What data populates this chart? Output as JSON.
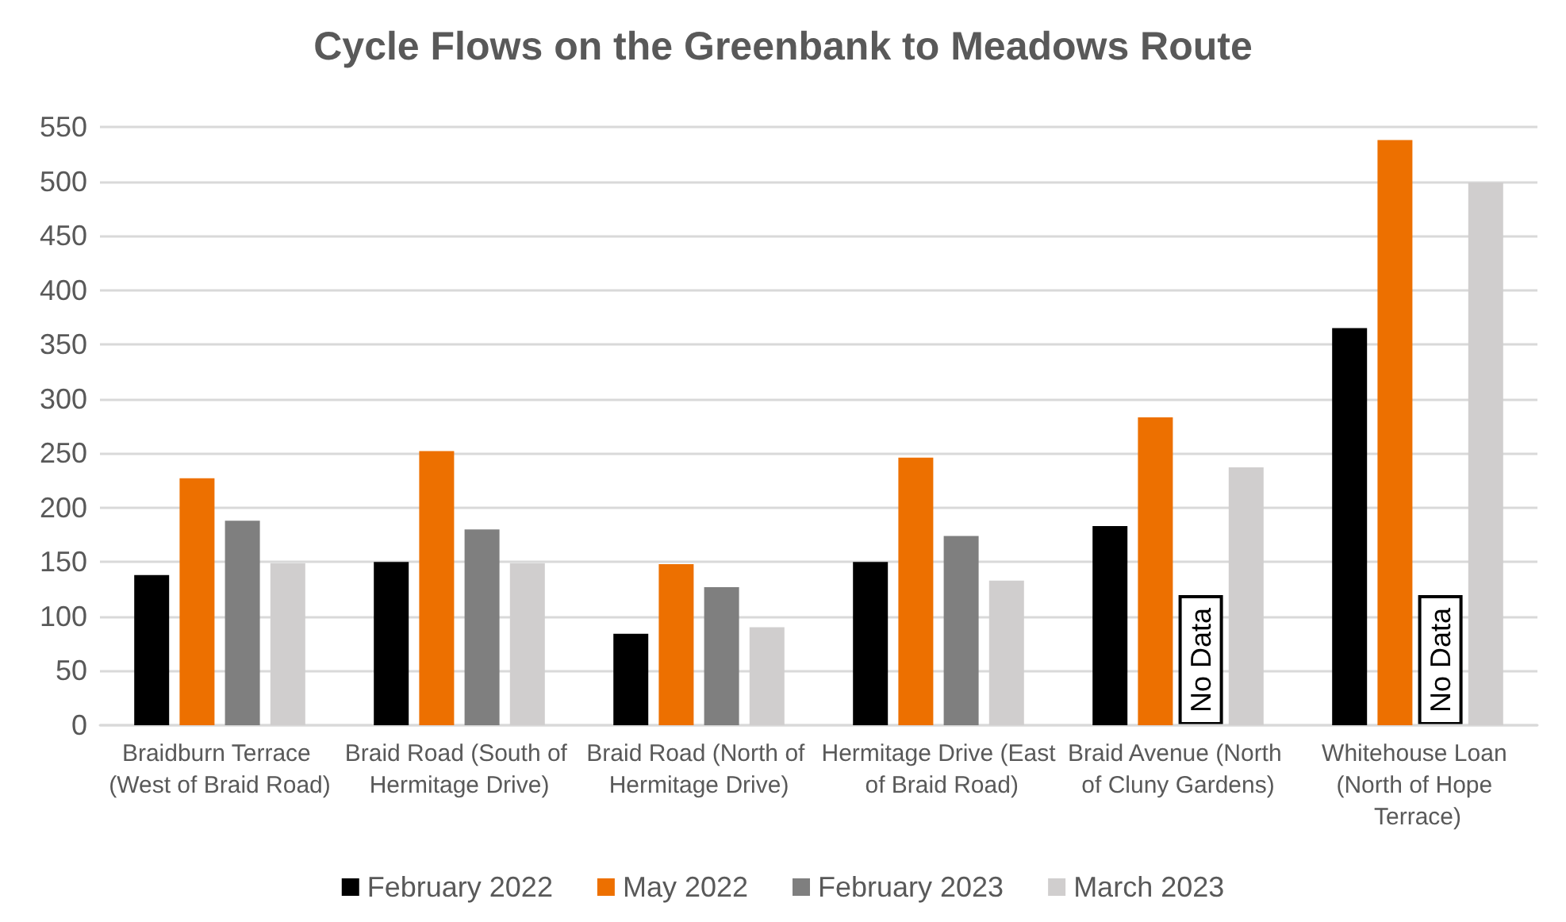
{
  "chart_data": {
    "type": "bar",
    "title": "Cycle Flows on the Greenbank to Meadows Route",
    "categories": [
      "Braidburn Terrace (West of Braid Road)",
      "Braid Road (South of Hermitage Drive)",
      "Braid Road (North of Hermitage Drive)",
      "Hermitage Drive (East of Braid Road)",
      "Braid Avenue (North of Cluny Gardens)",
      "Whitehouse Loan (North of Hope Terrace)"
    ],
    "series": [
      {
        "name": "February 2022",
        "color": "#000000",
        "values": [
          138,
          150,
          84,
          150,
          183,
          365
        ]
      },
      {
        "name": "May 2022",
        "color": "#ed7000",
        "values": [
          227,
          252,
          148,
          246,
          283,
          538
        ]
      },
      {
        "name": "February 2023",
        "color": "#7f7f7f",
        "values": [
          188,
          180,
          127,
          174,
          null,
          null
        ]
      },
      {
        "name": "March 2023",
        "color": "#d0cece",
        "values": [
          149,
          149,
          90,
          133,
          237,
          499
        ]
      }
    ],
    "annotations": [
      {
        "text": "No Data",
        "x": "Braid Avenue (North of Cluny Gardens)",
        "y": 0
      },
      {
        "text": "No Data",
        "x": "Whitehouse Loan (North of Hope Terrace)",
        "y": 0
      }
    ],
    "ylim": [
      0,
      550
    ],
    "yticks": [
      0,
      50,
      100,
      150,
      200,
      250,
      300,
      350,
      400,
      450,
      500,
      550
    ],
    "grid": "y",
    "legend": "bottom"
  }
}
